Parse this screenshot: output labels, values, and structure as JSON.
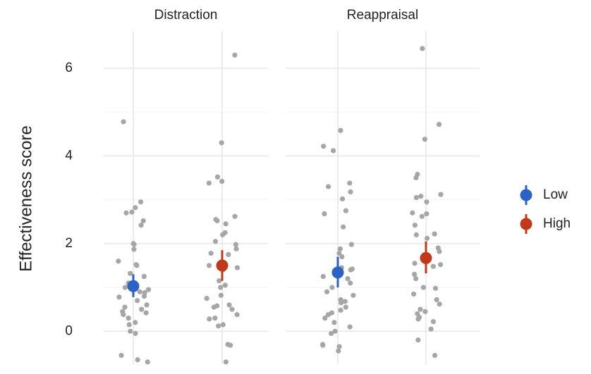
{
  "chart_data": {
    "type": "scatter",
    "ylabel": "Effectiveness score",
    "ylim": [
      -0.75,
      6.85
    ],
    "yticks": [
      0,
      2,
      4,
      6
    ],
    "yminor": [
      1,
      3,
      5
    ],
    "grid": true,
    "point_color": "#a6a6a6",
    "groups": [
      {
        "name": "Low",
        "color": "#2a62c6"
      },
      {
        "name": "High",
        "color": "#c0391b"
      }
    ],
    "facets": [
      {
        "title": "Distraction",
        "series": [
          {
            "values": [
              4.78,
              2.95,
              2.82,
              2.72,
              2.7,
              2.52,
              2.42,
              2.0,
              1.98,
              1.87,
              1.6,
              1.52,
              1.5,
              1.32,
              1.25,
              1.1,
              1.05,
              1.0,
              0.95,
              0.9,
              0.88,
              0.8,
              0.78,
              0.7,
              0.6,
              0.55,
              0.5,
              0.45,
              0.42,
              0.38,
              0.3,
              0.2,
              0.15,
              0.0,
              -0.05,
              -0.55,
              -0.65,
              -0.7
            ],
            "mean": 1.03,
            "ci": [
              0.78,
              1.3
            ]
          },
          {
            "values": [
              6.3,
              4.3,
              3.52,
              3.42,
              3.38,
              2.62,
              2.55,
              2.52,
              2.45,
              2.25,
              2.2,
              2.05,
              1.98,
              1.88,
              1.78,
              1.75,
              1.5,
              1.45,
              1.4,
              1.15,
              1.05,
              1.0,
              0.82,
              0.75,
              0.6,
              0.58,
              0.55,
              0.5,
              0.38,
              0.3,
              0.28,
              0.15,
              0.12,
              -0.3,
              -0.32,
              -0.7
            ],
            "mean": 1.5,
            "ci": [
              1.15,
              1.85
            ]
          }
        ]
      },
      {
        "title": "Reappraisal",
        "series": [
          {
            "values": [
              4.58,
              4.22,
              4.12,
              3.38,
              3.3,
              3.18,
              3.02,
              2.75,
              2.68,
              2.38,
              1.98,
              1.88,
              1.78,
              1.7,
              1.45,
              1.42,
              1.4,
              1.25,
              1.2,
              1.1,
              1.0,
              0.9,
              0.82,
              0.72,
              0.68,
              0.65,
              0.55,
              0.48,
              0.42,
              0.38,
              0.3,
              0.2,
              0.1,
              0.0,
              -0.05,
              -0.3,
              -0.32,
              -0.35,
              -0.45
            ],
            "mean": 1.34,
            "ci": [
              1.0,
              1.7
            ]
          },
          {
            "values": [
              6.45,
              4.72,
              4.38,
              3.58,
              3.5,
              3.12,
              3.08,
              3.05,
              2.95,
              2.7,
              2.68,
              2.62,
              2.42,
              2.22,
              2.2,
              2.12,
              1.9,
              1.82,
              1.55,
              1.52,
              1.48,
              1.3,
              1.2,
              1.0,
              0.98,
              0.85,
              0.72,
              0.62,
              0.5,
              0.45,
              0.4,
              0.32,
              0.28,
              0.22,
              0.05,
              -0.2,
              -0.55
            ],
            "mean": 1.67,
            "ci": [
              1.32,
              2.05
            ]
          }
        ]
      }
    ]
  }
}
